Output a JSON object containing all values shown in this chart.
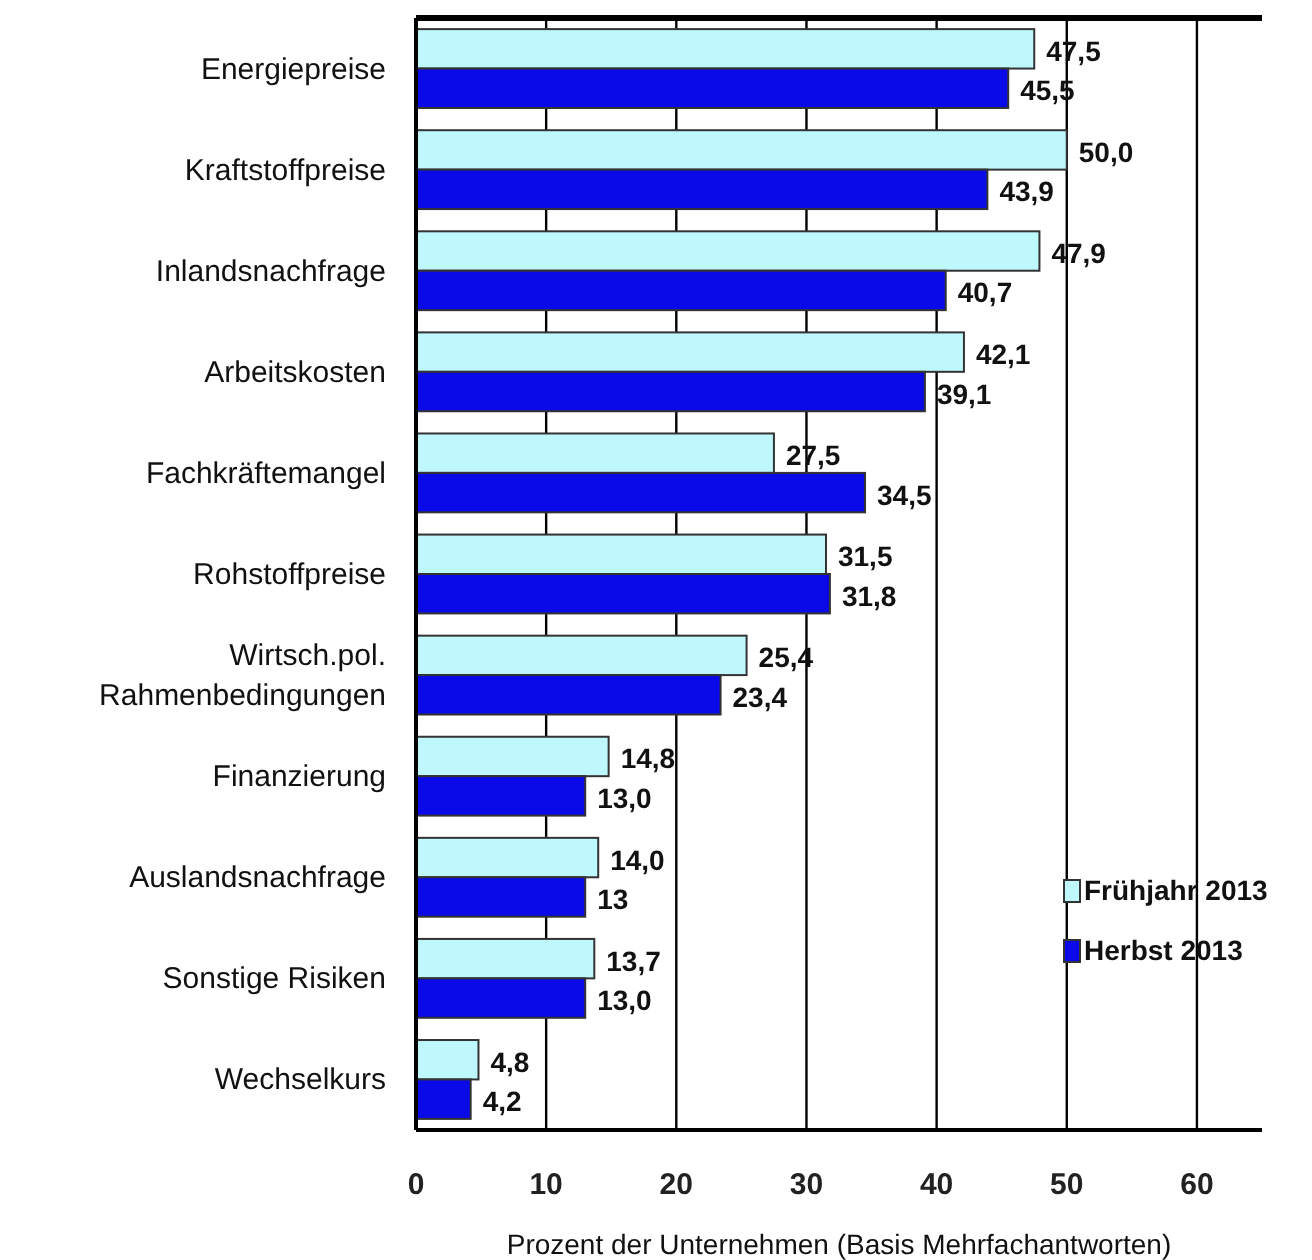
{
  "chart_data": {
    "type": "bar",
    "orientation": "horizontal",
    "xlabel": "Prozent der Unternehmen (Basis Mehrfachantworten)",
    "categories": [
      "Energiepreise",
      "Kraftstoffpreise",
      "Inlandsnachfrage",
      "Arbeitskosten",
      "Fachkräftemangel",
      "Rohstoffpreise",
      "Wirtsch.pol.\nRahmenbedingungen",
      "Finanzierung",
      "Auslandsnachfrage",
      "Sonstige Risiken",
      "Wechselkurs"
    ],
    "series": [
      {
        "name": "Frühjahr 2013",
        "color": "#bff8fc",
        "values": [
          47.5,
          50.0,
          47.9,
          42.1,
          27.5,
          31.5,
          25.4,
          14.8,
          14.0,
          13.7,
          4.8
        ],
        "value_labels": [
          "47,5",
          "50,0",
          "47,9",
          "42,1",
          "27,5",
          "31,5",
          "25,4",
          "14,8",
          "14,0",
          "13,7",
          "4,8"
        ]
      },
      {
        "name": "Herbst 2013",
        "color": "#0a0ae8",
        "values": [
          45.5,
          43.9,
          40.7,
          39.1,
          34.5,
          31.8,
          23.4,
          13.0,
          13.0,
          13.0,
          4.2
        ],
        "value_labels": [
          "45,5",
          "43,9",
          "40,7",
          "39,1",
          "34,5",
          "31,8",
          "23,4",
          "13,0",
          "13",
          "13,0",
          "4,2"
        ]
      }
    ],
    "xlim": [
      0,
      65
    ],
    "xticks": [
      0,
      10,
      20,
      30,
      40,
      50,
      60
    ],
    "grid": "x",
    "legend": "bottom right"
  }
}
